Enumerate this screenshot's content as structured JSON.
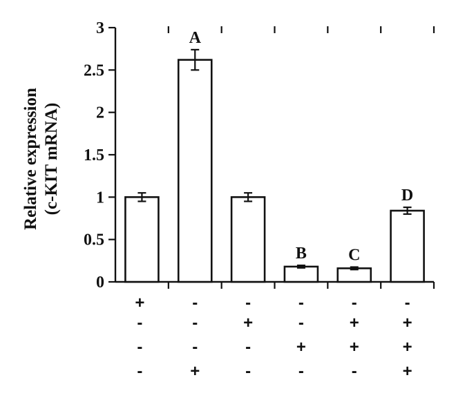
{
  "chart_data": {
    "type": "bar",
    "ylabel_line1": "Relative expression",
    "ylabel_line2": "(c-KIT mRNA)",
    "ylim": [
      0,
      3
    ],
    "yticks": [
      "0",
      "0.5",
      "1",
      "1.5",
      "2",
      "2.5",
      "3"
    ],
    "ytick_values": [
      0,
      0.5,
      1,
      1.5,
      2,
      2.5,
      3
    ],
    "values": [
      1.0,
      2.62,
      1.0,
      0.18,
      0.16,
      0.84
    ],
    "errors": [
      0.05,
      0.12,
      0.05,
      0.015,
      0.015,
      0.04
    ],
    "significance_labels": [
      "",
      "A",
      "",
      "B",
      "C",
      "D"
    ],
    "condition_rows": [
      [
        "+",
        "-",
        "-",
        "-",
        "-",
        "-"
      ],
      [
        "-",
        "-",
        "+",
        "-",
        "+",
        "+"
      ],
      [
        "-",
        "-",
        "-",
        "+",
        "+",
        "+"
      ],
      [
        "-",
        "+",
        "-",
        "-",
        "-",
        "+"
      ]
    ],
    "grid": false,
    "legend": "none"
  }
}
